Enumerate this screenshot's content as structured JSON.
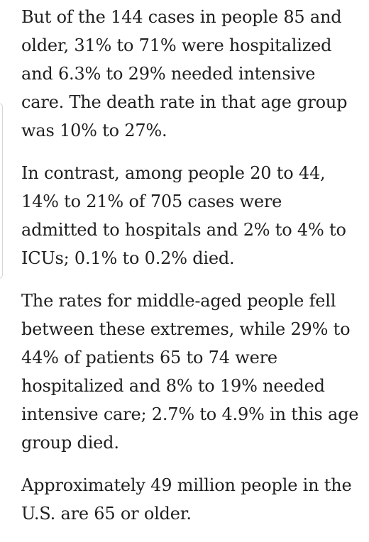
{
  "article": {
    "paragraphs": [
      "But of the 144 cases in people 85 and older, 31% to 71% were hospitalized and 6.3% to 29% needed intensive care. The death rate in that age group was 10% to 27%.",
      "In contrast, among people 20 to 44, 14% to 21% of 705 cases were admitted to hospitals and 2% to 4% to ICUs; 0.1% to 0.2% died.",
      "The rates for middle-aged people fell between these extremes, while 29% to 44% of patients 65 to 74 were hospitalized and 8% to 19% needed intensive care; 2.7% to 4.9% in this age group died.",
      "Approximately 49 million people in the U.S. are 65 or older."
    ]
  }
}
